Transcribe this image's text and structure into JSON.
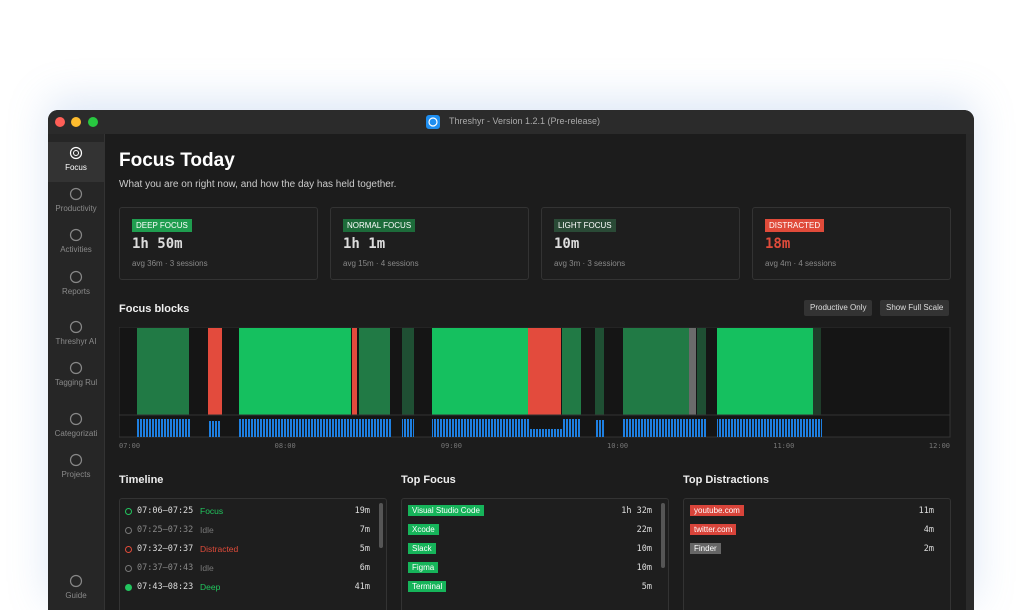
{
  "window": {
    "title": "Threshyr - Version 1.2.1 (Pre-release)"
  },
  "sidebar": {
    "items": [
      "Focus",
      "Productivity",
      "Activities",
      "Reports",
      "Threshyr AI",
      "Tagging Rul",
      "Categorizati",
      "Projects",
      "Guide"
    ]
  },
  "header": {
    "title": "Focus Today",
    "subtitle": "What you are on right now, and how the day has held together."
  },
  "cards": [
    {
      "badge": "DEEP FOCUS",
      "value": "1h 50m",
      "detail": "avg 36m · 3 sessions",
      "color": "#1f9d4f"
    },
    {
      "badge": "NORMAL FOCUS",
      "value": "1h 1m",
      "detail": "avg 15m · 4 sessions",
      "color": "#1d6b3a"
    },
    {
      "badge": "LIGHT FOCUS",
      "value": "10m",
      "detail": "avg 3m · 3 sessions",
      "color": "#2a4a36"
    },
    {
      "badge": "DISTRACTED",
      "value": "18m",
      "detail": "avg 4m · 4 sessions",
      "color": "#e04b3a"
    }
  ],
  "focus_blocks": {
    "title": "Focus blocks",
    "buttons": [
      "Productive Only",
      "Show Full Scale"
    ],
    "axis_labels": [
      "07:00",
      "08:00",
      "09:00",
      "10:00",
      "11:00",
      "12:00"
    ]
  },
  "timeline": {
    "title": "Timeline",
    "rows": [
      {
        "time": "07:06–07:25",
        "state": "Focus",
        "duration": "19m",
        "color": "#22c55e"
      },
      {
        "time": "07:25–07:32",
        "state": "Idle",
        "duration": "7m",
        "color": "#777777"
      },
      {
        "time": "07:32–07:37",
        "state": "Distracted",
        "duration": "5m",
        "color": "#e04b3a"
      },
      {
        "time": "07:37–07:43",
        "state": "Idle",
        "duration": "6m",
        "color": "#777777"
      },
      {
        "time": "07:43–08:23",
        "state": "Deep",
        "duration": "41m",
        "color": "#22c55e"
      }
    ]
  },
  "top_focus": {
    "title": "Top Focus",
    "rows": [
      {
        "name": "Visual Studio Code",
        "duration": "1h 32m",
        "color": "#16b45a"
      },
      {
        "name": "Xcode",
        "duration": "22m",
        "color": "#16b45a"
      },
      {
        "name": "Slack",
        "duration": "10m",
        "color": "#16b45a"
      },
      {
        "name": "Figma",
        "duration": "10m",
        "color": "#16b45a"
      },
      {
        "name": "Terminal",
        "duration": "5m",
        "color": "#16b45a"
      }
    ]
  },
  "top_distractions": {
    "title": "Top Distractions",
    "rows": [
      {
        "name": "youtube.com",
        "duration": "11m",
        "color": "#d9443a"
      },
      {
        "name": "twitter.com",
        "duration": "4m",
        "color": "#d9443a"
      },
      {
        "name": "Finder",
        "duration": "2m",
        "color": "#666666"
      }
    ]
  }
}
